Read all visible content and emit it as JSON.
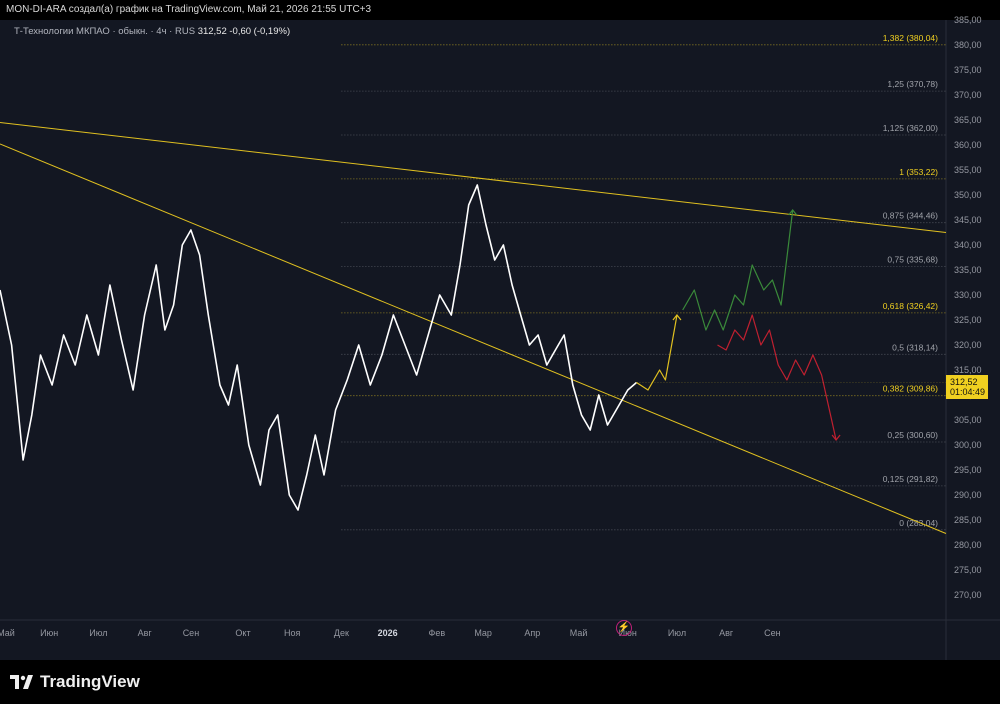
{
  "header": {
    "caption": "MON-DI-ARA создал(а) график на TradingView.com, Май 21, 2026 21:55 UTC+3"
  },
  "legend": {
    "symbol": "Т-Технологии МКПАО · обыкн. · 4ч · RUS",
    "price": "312,52",
    "change": "-0,60 (-0,19%)"
  },
  "price_tag": {
    "price": "312,52",
    "countdown": "01:04:49",
    "color": "#f0d020"
  },
  "footer": {
    "brand": "TradingView"
  },
  "colors": {
    "background": "#131722",
    "price_line": "#ffffff",
    "trendline": "#e0c020",
    "fib_level": "#8a8d95",
    "fib_highlight": "#f0d020",
    "bull_path": "#3a8a3a",
    "bear_path": "#c02030",
    "neutral_path": "#e0c020"
  },
  "chart_data": {
    "type": "line",
    "y_axis": {
      "min": 265,
      "max": 385,
      "ticks": [
        "385,00",
        "380,00",
        "375,00",
        "370,00",
        "365,00",
        "360,00",
        "355,00",
        "350,00",
        "345,00",
        "340,00",
        "335,00",
        "330,00",
        "325,00",
        "320,00",
        "315,00",
        "310,00",
        "305,00",
        "300,00",
        "295,00",
        "290,00",
        "285,00",
        "280,00",
        "275,00",
        "270,00"
      ]
    },
    "x_axis": {
      "labels": [
        "Май",
        "Июн",
        "Июл",
        "Авг",
        "Сен",
        "Окт",
        "Ноя",
        "Дек",
        "2026",
        "Фев",
        "Мар",
        "Апр",
        "Май",
        "Июн",
        "Июл",
        "Авг",
        "Сен"
      ]
    },
    "fib_levels": [
      {
        "ratio": "1,382",
        "price": 380.04,
        "label": "1,382 (380,04)",
        "highlight": true
      },
      {
        "ratio": "1,25",
        "price": 370.78,
        "label": "1,25 (370,78)",
        "highlight": false
      },
      {
        "ratio": "1,125",
        "price": 362.0,
        "label": "1,125 (362,00)",
        "highlight": false
      },
      {
        "ratio": "1",
        "price": 353.22,
        "label": "1 (353,22)",
        "highlight": true
      },
      {
        "ratio": "0,875",
        "price": 344.46,
        "label": "0,875 (344,46)",
        "highlight": false
      },
      {
        "ratio": "0,75",
        "price": 335.68,
        "label": "0,75 (335,68)",
        "highlight": false
      },
      {
        "ratio": "0,618",
        "price": 326.42,
        "label": "0,618 (326,42)",
        "highlight": true
      },
      {
        "ratio": "0,5",
        "price": 318.14,
        "label": "0,5 (318,14)",
        "highlight": false
      },
      {
        "ratio": "0,382",
        "price": 309.86,
        "label": "0,382 (309,86)",
        "highlight": true
      },
      {
        "ratio": "0,25",
        "price": 300.6,
        "label": "0,25 (300,60)",
        "highlight": false
      },
      {
        "ratio": "0,125",
        "price": 291.82,
        "label": "0,125 (291,82)",
        "highlight": false
      },
      {
        "ratio": "0",
        "price": 283.04,
        "label": "0 (283,04)",
        "highlight": false
      }
    ],
    "series": [
      {
        "values": [
          [
            2025.33,
            331
          ],
          [
            2025.35,
            320
          ],
          [
            2025.37,
            297
          ],
          [
            2025.385,
            306
          ],
          [
            2025.4,
            318
          ],
          [
            2025.42,
            312
          ],
          [
            2025.44,
            322
          ],
          [
            2025.46,
            316
          ],
          [
            2025.48,
            326
          ],
          [
            2025.5,
            318
          ],
          [
            2025.52,
            332
          ],
          [
            2025.54,
            321
          ],
          [
            2025.56,
            311
          ],
          [
            2025.58,
            326
          ],
          [
            2025.6,
            336
          ],
          [
            2025.615,
            323
          ],
          [
            2025.63,
            328
          ],
          [
            2025.645,
            340
          ],
          [
            2025.66,
            343
          ],
          [
            2025.675,
            338
          ],
          [
            2025.69,
            326
          ],
          [
            2025.71,
            312
          ],
          [
            2025.725,
            308
          ],
          [
            2025.74,
            316
          ],
          [
            2025.76,
            300
          ],
          [
            2025.78,
            292
          ],
          [
            2025.795,
            303
          ],
          [
            2025.81,
            306
          ],
          [
            2025.83,
            290
          ],
          [
            2025.845,
            287
          ],
          [
            2025.86,
            294
          ],
          [
            2025.875,
            302
          ],
          [
            2025.89,
            294
          ],
          [
            2025.91,
            307
          ],
          [
            2025.93,
            313
          ],
          [
            2025.95,
            320
          ],
          [
            2025.97,
            312
          ],
          [
            2025.99,
            318
          ],
          [
            2026.01,
            326
          ],
          [
            2026.03,
            320
          ],
          [
            2026.05,
            314
          ],
          [
            2026.07,
            322
          ],
          [
            2026.09,
            330
          ],
          [
            2026.11,
            326
          ],
          [
            2026.125,
            336
          ],
          [
            2026.14,
            348
          ],
          [
            2026.155,
            352
          ],
          [
            2026.17,
            344
          ],
          [
            2026.185,
            337
          ],
          [
            2026.2,
            340
          ],
          [
            2026.215,
            332
          ],
          [
            2026.23,
            326
          ],
          [
            2026.245,
            320
          ],
          [
            2026.26,
            322
          ],
          [
            2026.275,
            316
          ],
          [
            2026.29,
            319
          ],
          [
            2026.305,
            322
          ],
          [
            2026.32,
            312
          ],
          [
            2026.335,
            306
          ],
          [
            2026.35,
            303
          ],
          [
            2026.365,
            310
          ],
          [
            2026.38,
            304
          ],
          [
            2026.4,
            308
          ],
          [
            2026.415,
            311
          ],
          [
            2026.43,
            312.5
          ]
        ]
      },
      {
        "values": [
          [
            2026.43,
            312.5
          ],
          [
            2026.45,
            311
          ],
          [
            2026.47,
            315
          ],
          [
            2026.48,
            313
          ],
          [
            2026.5,
            326
          ]
        ]
      },
      {
        "values": [
          [
            2026.51,
            327
          ],
          [
            2026.53,
            331
          ],
          [
            2026.55,
            323
          ],
          [
            2026.565,
            327
          ],
          [
            2026.58,
            323
          ],
          [
            2026.6,
            330
          ],
          [
            2026.615,
            328
          ],
          [
            2026.63,
            336
          ],
          [
            2026.65,
            331
          ],
          [
            2026.665,
            333
          ],
          [
            2026.68,
            328
          ],
          [
            2026.7,
            347
          ]
        ]
      },
      {
        "values": [
          [
            2026.57,
            320
          ],
          [
            2026.585,
            319
          ],
          [
            2026.6,
            323
          ],
          [
            2026.615,
            321
          ],
          [
            2026.63,
            326
          ],
          [
            2026.645,
            320
          ],
          [
            2026.66,
            323
          ],
          [
            2026.675,
            316
          ],
          [
            2026.69,
            313
          ],
          [
            2026.705,
            317
          ],
          [
            2026.72,
            314
          ],
          [
            2026.735,
            318
          ],
          [
            2026.75,
            314
          ],
          [
            2026.775,
            301
          ]
        ]
      }
    ],
    "trendlines": [
      {
        "from": [
          2025.33,
          364.5
        ],
        "to": [
          2026.965,
          342.5
        ]
      },
      {
        "from": [
          2025.33,
          360.2
        ],
        "to": [
          2026.965,
          282.3
        ]
      }
    ]
  }
}
